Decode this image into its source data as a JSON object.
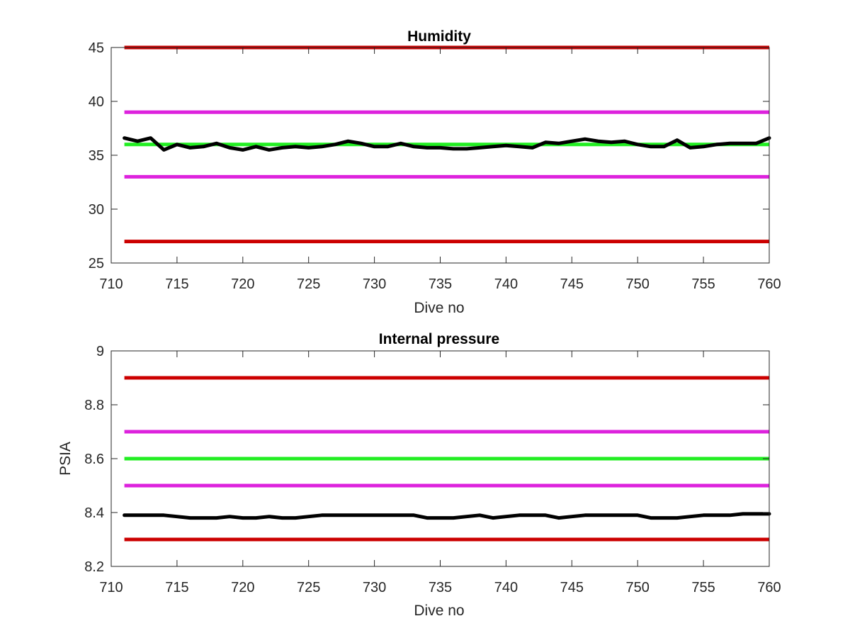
{
  "chart_data": [
    {
      "type": "line",
      "title": "Humidity",
      "xlabel": "Dive no",
      "ylabel": "",
      "xlim": [
        710,
        760
      ],
      "ylim": [
        25,
        45
      ],
      "xticks": [
        "710",
        "715",
        "720",
        "725",
        "730",
        "735",
        "740",
        "745",
        "750",
        "755",
        "760"
      ],
      "yticks": [
        "25",
        "30",
        "35",
        "40",
        "45"
      ],
      "grid": false,
      "legend": "none",
      "threshold_lines": [
        {
          "value": 45,
          "color": "#cc0000"
        },
        {
          "value": 39,
          "color": "#dd22dd"
        },
        {
          "value": 36,
          "color": "#22ee22"
        },
        {
          "value": 33,
          "color": "#dd22dd"
        },
        {
          "value": 27,
          "color": "#cc0000"
        }
      ],
      "series": [
        {
          "color": "#000000",
          "x": [
            711,
            712,
            713,
            714,
            715,
            716,
            717,
            718,
            719,
            720,
            721,
            722,
            723,
            724,
            725,
            726,
            727,
            728,
            729,
            730,
            731,
            732,
            733,
            734,
            735,
            736,
            737,
            738,
            739,
            740,
            741,
            742,
            743,
            744,
            745,
            746,
            747,
            748,
            749,
            750,
            751,
            752,
            753,
            754,
            755,
            756,
            757,
            758,
            759,
            760
          ],
          "y": [
            36.6,
            36.3,
            36.6,
            35.5,
            36.0,
            35.7,
            35.8,
            36.1,
            35.7,
            35.5,
            35.8,
            35.5,
            35.7,
            35.8,
            35.7,
            35.8,
            36.0,
            36.3,
            36.1,
            35.8,
            35.8,
            36.1,
            35.8,
            35.7,
            35.7,
            35.6,
            35.6,
            35.7,
            35.8,
            35.9,
            35.8,
            35.7,
            36.2,
            36.1,
            36.3,
            36.5,
            36.3,
            36.2,
            36.3,
            36.0,
            35.8,
            35.8,
            36.4,
            35.7,
            35.8,
            36.0,
            36.1,
            36.1,
            36.1,
            36.6
          ]
        }
      ]
    },
    {
      "type": "line",
      "title": "Internal pressure",
      "xlabel": "Dive no",
      "ylabel": "PSIA",
      "xlim": [
        710,
        760
      ],
      "ylim": [
        8.2,
        9
      ],
      "xticks": [
        "710",
        "715",
        "720",
        "725",
        "730",
        "735",
        "740",
        "745",
        "750",
        "755",
        "760"
      ],
      "yticks": [
        "8.2",
        "8.4",
        "8.6",
        "8.8",
        "9"
      ],
      "grid": false,
      "legend": "none",
      "threshold_lines": [
        {
          "value": 8.9,
          "color": "#cc0000"
        },
        {
          "value": 8.7,
          "color": "#dd22dd"
        },
        {
          "value": 8.6,
          "color": "#22ee22"
        },
        {
          "value": 8.5,
          "color": "#dd22dd"
        },
        {
          "value": 8.3,
          "color": "#cc0000"
        }
      ],
      "series": [
        {
          "color": "#000000",
          "x": [
            711,
            712,
            713,
            714,
            715,
            716,
            717,
            718,
            719,
            720,
            721,
            722,
            723,
            724,
            725,
            726,
            727,
            728,
            729,
            730,
            731,
            732,
            733,
            734,
            735,
            736,
            737,
            738,
            739,
            740,
            741,
            742,
            743,
            744,
            745,
            746,
            747,
            748,
            749,
            750,
            751,
            752,
            753,
            754,
            755,
            756,
            757,
            758,
            759,
            760
          ],
          "y": [
            8.39,
            8.39,
            8.39,
            8.39,
            8.385,
            8.38,
            8.38,
            8.38,
            8.385,
            8.38,
            8.38,
            8.385,
            8.38,
            8.38,
            8.385,
            8.39,
            8.39,
            8.39,
            8.39,
            8.39,
            8.39,
            8.39,
            8.39,
            8.38,
            8.38,
            8.38,
            8.385,
            8.39,
            8.38,
            8.385,
            8.39,
            8.39,
            8.39,
            8.38,
            8.385,
            8.39,
            8.39,
            8.39,
            8.39,
            8.39,
            8.38,
            8.38,
            8.38,
            8.385,
            8.39,
            8.39,
            8.39,
            8.395,
            8.395,
            8.395
          ]
        }
      ]
    }
  ]
}
